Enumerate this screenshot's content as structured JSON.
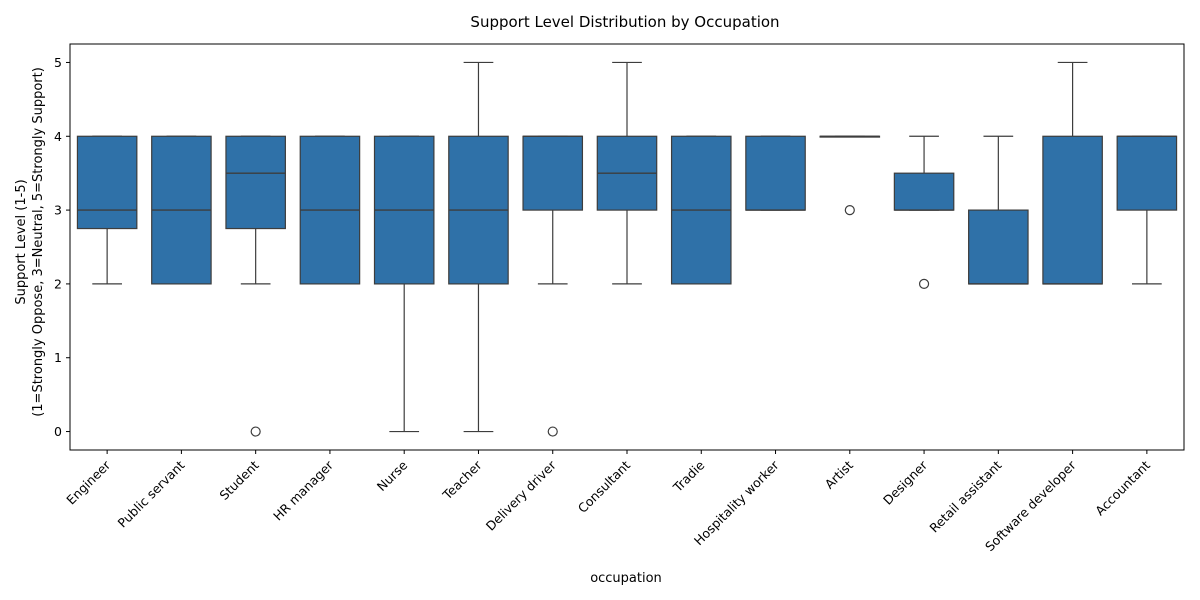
{
  "chart_data": {
    "type": "box",
    "title": "Support Level Distribution by Occupation",
    "xlabel": "occupation",
    "ylabel_line1": "Support Level (1-5)",
    "ylabel_line2": "(1=Strongly Oppose, 3=Neutral, 5=Strongly Support)",
    "ylim": [
      -0.25,
      5.25
    ],
    "yticks": [
      "0",
      "1",
      "2",
      "3",
      "4",
      "5"
    ],
    "grid": false,
    "box_color": "#2f71a8",
    "line_color": "#3d3d3d",
    "categories": [
      "Engineer",
      "Public servant",
      "Student",
      "HR manager",
      "Nurse",
      "Teacher",
      "Delivery driver",
      "Consultant",
      "Tradie",
      "Hospitality worker",
      "Artist",
      "Designer",
      "Retail assistant",
      "Software developer",
      "Accountant"
    ],
    "boxes": [
      {
        "category": "Engineer",
        "whisker_low": 2,
        "q1": 2.75,
        "median": 3,
        "q3": 4,
        "whisker_high": 4,
        "outliers": []
      },
      {
        "category": "Public servant",
        "whisker_low": 2,
        "q1": 2,
        "median": 3,
        "q3": 4,
        "whisker_high": 4,
        "outliers": []
      },
      {
        "category": "Student",
        "whisker_low": 2,
        "q1": 2.75,
        "median": 3.5,
        "q3": 4,
        "whisker_high": 4,
        "outliers": [
          0
        ]
      },
      {
        "category": "HR manager",
        "whisker_low": 2,
        "q1": 2,
        "median": 3,
        "q3": 4,
        "whisker_high": 4,
        "outliers": []
      },
      {
        "category": "Nurse",
        "whisker_low": 0,
        "q1": 2,
        "median": 3,
        "q3": 4,
        "whisker_high": 4,
        "outliers": []
      },
      {
        "category": "Teacher",
        "whisker_low": 0,
        "q1": 2,
        "median": 3,
        "q3": 4,
        "whisker_high": 5,
        "outliers": []
      },
      {
        "category": "Delivery driver",
        "whisker_low": 2,
        "q1": 3,
        "median": 4,
        "q3": 4,
        "whisker_high": 4,
        "outliers": [
          0
        ]
      },
      {
        "category": "Consultant",
        "whisker_low": 2,
        "q1": 3,
        "median": 3.5,
        "q3": 4,
        "whisker_high": 5,
        "outliers": []
      },
      {
        "category": "Tradie",
        "whisker_low": 2,
        "q1": 2,
        "median": 3,
        "q3": 4,
        "whisker_high": 4,
        "outliers": []
      },
      {
        "category": "Hospitality worker",
        "whisker_low": 3,
        "q1": 3,
        "median": 3,
        "q3": 4,
        "whisker_high": 4,
        "outliers": []
      },
      {
        "category": "Artist",
        "whisker_low": 4,
        "q1": 4,
        "median": 4,
        "q3": 4,
        "whisker_high": 4,
        "outliers": [
          3
        ]
      },
      {
        "category": "Designer",
        "whisker_low": 3,
        "q1": 3,
        "median": 3,
        "q3": 3.5,
        "whisker_high": 4,
        "outliers": [
          2
        ]
      },
      {
        "category": "Retail assistant",
        "whisker_low": 2,
        "q1": 2,
        "median": 2,
        "q3": 3,
        "whisker_high": 4,
        "outliers": []
      },
      {
        "category": "Software developer",
        "whisker_low": 2,
        "q1": 2,
        "median": 2,
        "q3": 4,
        "whisker_high": 5,
        "outliers": []
      },
      {
        "category": "Accountant",
        "whisker_low": 2,
        "q1": 3,
        "median": 4,
        "q3": 4,
        "whisker_high": 4,
        "outliers": []
      }
    ]
  }
}
